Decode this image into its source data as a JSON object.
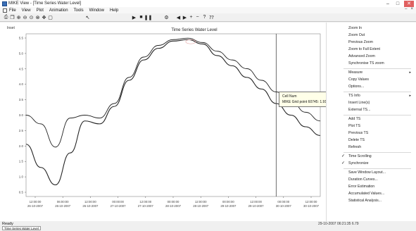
{
  "window": {
    "title": "MIKE View - [Time Series Water Level]",
    "controls": {
      "minimize": "‒",
      "maximize": "□",
      "close": "✕"
    }
  },
  "menubar": {
    "items": [
      "File",
      "View",
      "Plot",
      "Animation",
      "Tools",
      "Window",
      "Help"
    ],
    "mdi_controls": {
      "minimize": "‒",
      "close": "×"
    }
  },
  "toolbar": {
    "buttons": [
      {
        "name": "print-button",
        "glyph": "⎙"
      },
      {
        "name": "copy-button",
        "glyph": "❐"
      },
      {
        "name": "zoom-in-button",
        "glyph": "⊕"
      },
      {
        "name": "zoom-out-button",
        "glyph": "⊖"
      },
      {
        "name": "zoom-previous-button",
        "glyph": "⊙"
      },
      {
        "name": "zoom-full-button",
        "glyph": "⊗"
      },
      {
        "name": "pan-button",
        "glyph": "✥"
      },
      {
        "name": "window-button",
        "glyph": "▢"
      },
      {
        "name": "pointer-button",
        "glyph": "↖"
      },
      {
        "name": "play-button",
        "glyph": "▶"
      },
      {
        "name": "stop-button",
        "glyph": "■"
      },
      {
        "name": "pause-button",
        "glyph": "❚❚"
      },
      {
        "name": "settings-button",
        "glyph": "⚙"
      },
      {
        "name": "step-back-button",
        "glyph": "◀"
      },
      {
        "name": "step-forward-button",
        "glyph": "▶"
      },
      {
        "name": "plus-button",
        "glyph": "+"
      },
      {
        "name": "minus-button",
        "glyph": "−"
      },
      {
        "name": "help-button",
        "glyph": "?"
      },
      {
        "name": "context-help-button",
        "glyph": "⁇"
      }
    ]
  },
  "chart": {
    "panel_label": "Inset",
    "title": "Time Series Water Level",
    "y_ticks": [
      "5.5",
      "5.0",
      "4.5",
      "4.0",
      "3.5",
      "3.0",
      "2.5",
      "2.0",
      "1.5",
      "1.0",
      "0.5"
    ],
    "x_ticks": [
      {
        "time": "12:00:00",
        "date": "26-10-2007"
      },
      {
        "time": "06:00:00",
        "date": "26-10-2007"
      },
      {
        "time": "12:00:00",
        "date": "26-10-2007"
      },
      {
        "time": "00:00:00",
        "date": "27-10-2007"
      },
      {
        "time": "12:00:00",
        "date": "27-10-2007"
      },
      {
        "time": "00:00:00",
        "date": "28-10-2007"
      },
      {
        "time": "12:00:00",
        "date": "28-10-2007"
      },
      {
        "time": "00:00:00",
        "date": "29-10-2007"
      },
      {
        "time": "12:00:00",
        "date": "29-10-2007"
      },
      {
        "time": "00:00:00",
        "date": "30-10-2007"
      },
      {
        "time": "12:00:00",
        "date": "30-10-2007"
      }
    ],
    "colors": {
      "series": "#222222",
      "cursor": "#333333",
      "marker": "#e8b0b0"
    }
  },
  "chart_data": {
    "type": "line",
    "title": "Time Series Water Level",
    "ylim": [
      0.3,
      5.9
    ],
    "x": [
      0,
      0.5,
      1,
      1.5,
      2,
      2.5,
      3,
      3.5,
      4,
      4.5,
      5,
      5.5,
      6,
      6.5,
      7,
      7.5,
      8,
      8.5,
      9,
      9.5,
      10
    ],
    "series": [
      {
        "values": [
          3.1,
          2.8,
          2.0,
          3.0,
          3.1,
          3.0,
          3.5,
          4.4,
          5.1,
          5.5,
          5.7,
          5.75,
          5.6,
          5.3,
          5.0,
          4.7,
          4.3,
          3.9,
          3.6,
          3.2,
          2.9
        ]
      },
      {
        "values": [
          2.1,
          1.3,
          0.7,
          1.8,
          2.9,
          2.8,
          3.4,
          4.3,
          5.0,
          5.4,
          5.65,
          5.7,
          5.55,
          5.15,
          4.8,
          4.4,
          4.0,
          3.5,
          3.1,
          2.7,
          2.4
        ]
      }
    ],
    "cursor_x": 8.5,
    "grid": false
  },
  "tooltip": {
    "line1": "Cell Num",
    "line2": "MIKE Grid point 60745: 1.911 1734.235"
  },
  "sidebar": {
    "items": [
      {
        "label": "Zoom In",
        "check": "",
        "arrow": "",
        "sep_after": false
      },
      {
        "label": "Zoom Out",
        "check": "",
        "arrow": "",
        "sep_after": false
      },
      {
        "label": "Previous Zoom",
        "check": "",
        "arrow": "",
        "sep_after": false
      },
      {
        "label": "Zoom to Full Extent",
        "check": "",
        "arrow": "",
        "sep_after": false
      },
      {
        "label": "Advanced Zoom",
        "check": "",
        "arrow": "",
        "sep_after": false
      },
      {
        "label": "Synchronise TS zoom",
        "check": "",
        "arrow": "",
        "sep_after": true
      },
      {
        "label": "Measure",
        "check": "",
        "arrow": "▸",
        "sep_after": false
      },
      {
        "label": "Copy Values",
        "check": "",
        "arrow": "",
        "sep_after": false
      },
      {
        "label": "Options...",
        "check": "",
        "arrow": "",
        "sep_after": true
      },
      {
        "label": "TS Info",
        "check": "",
        "arrow": "▸",
        "sep_after": false
      },
      {
        "label": "Insert Line(s)",
        "check": "",
        "arrow": "",
        "sep_after": false
      },
      {
        "label": "External TS...",
        "check": "",
        "arrow": "",
        "sep_after": true
      },
      {
        "label": "Add TS",
        "check": "",
        "arrow": "",
        "sep_after": false
      },
      {
        "label": "Plot TS",
        "check": "",
        "arrow": "",
        "sep_after": false
      },
      {
        "label": "Previous TS",
        "check": "",
        "arrow": "",
        "sep_after": false
      },
      {
        "label": "Delete TS",
        "check": "",
        "arrow": "",
        "sep_after": false
      },
      {
        "label": "Refresh",
        "check": "",
        "arrow": "",
        "sep_after": true
      },
      {
        "label": "Time Scrolling",
        "check": "✓",
        "arrow": "",
        "sep_after": false
      },
      {
        "label": "Synchronize",
        "check": "✓",
        "arrow": "",
        "sep_after": true
      },
      {
        "label": "Save Window Layout...",
        "check": "",
        "arrow": "",
        "sep_after": false
      },
      {
        "label": "Duration Curves...",
        "check": "",
        "arrow": "",
        "sep_after": false
      },
      {
        "label": "Error Estimation",
        "check": "",
        "arrow": "",
        "sep_after": false
      },
      {
        "label": "Accumulated Values...",
        "check": "",
        "arrow": "",
        "sep_after": false
      },
      {
        "label": "Statistical Analysis...",
        "check": "",
        "arrow": "",
        "sep_after": false
      }
    ]
  },
  "status": {
    "ready": "Ready",
    "coords": "29-10-2007 06:21:35  6.79",
    "tab": "Time Series Water Level"
  }
}
